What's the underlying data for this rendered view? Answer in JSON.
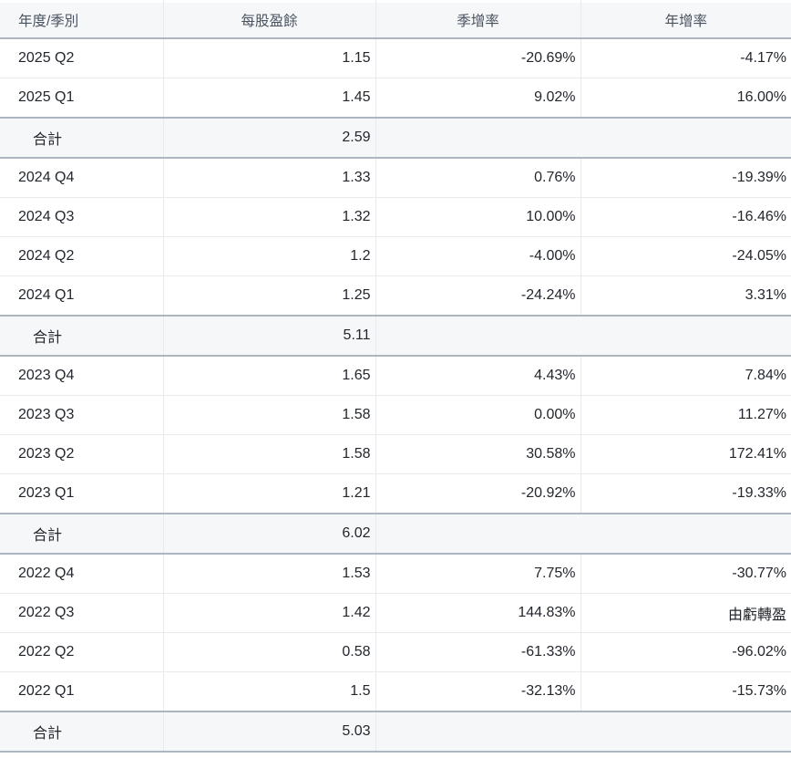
{
  "colors": {
    "header_background": "#f6f7f9",
    "total_row_background": "#f6f7f9",
    "heavy_border": "#adb5c0",
    "light_border": "#e8eaee",
    "header_text": "#49525f",
    "body_text": "#23272d"
  },
  "table": {
    "columns": [
      {
        "label": "年度/季別"
      },
      {
        "label": "每股盈餘"
      },
      {
        "label": "季增率"
      },
      {
        "label": "年增率"
      }
    ],
    "rows": [
      {
        "type": "data",
        "period": "2025 Q2",
        "eps": "1.15",
        "qoq": "-20.69%",
        "yoy": "-4.17%"
      },
      {
        "type": "data",
        "period": "2025 Q1",
        "eps": "1.45",
        "qoq": "9.02%",
        "yoy": "16.00%"
      },
      {
        "type": "total",
        "period": "合計",
        "eps": "2.59",
        "qoq": "",
        "yoy": ""
      },
      {
        "type": "data",
        "period": "2024 Q4",
        "eps": "1.33",
        "qoq": "0.76%",
        "yoy": "-19.39%"
      },
      {
        "type": "data",
        "period": "2024 Q3",
        "eps": "1.32",
        "qoq": "10.00%",
        "yoy": "-16.46%"
      },
      {
        "type": "data",
        "period": "2024 Q2",
        "eps": "1.2",
        "qoq": "-4.00%",
        "yoy": "-24.05%"
      },
      {
        "type": "data",
        "period": "2024 Q1",
        "eps": "1.25",
        "qoq": "-24.24%",
        "yoy": "3.31%"
      },
      {
        "type": "total",
        "period": "合計",
        "eps": "5.11",
        "qoq": "",
        "yoy": ""
      },
      {
        "type": "data",
        "period": "2023 Q4",
        "eps": "1.65",
        "qoq": "4.43%",
        "yoy": "7.84%"
      },
      {
        "type": "data",
        "period": "2023 Q3",
        "eps": "1.58",
        "qoq": "0.00%",
        "yoy": "11.27%"
      },
      {
        "type": "data",
        "period": "2023 Q2",
        "eps": "1.58",
        "qoq": "30.58%",
        "yoy": "172.41%"
      },
      {
        "type": "data",
        "period": "2023 Q1",
        "eps": "1.21",
        "qoq": "-20.92%",
        "yoy": "-19.33%"
      },
      {
        "type": "total",
        "period": "合計",
        "eps": "6.02",
        "qoq": "",
        "yoy": ""
      },
      {
        "type": "data",
        "period": "2022 Q4",
        "eps": "1.53",
        "qoq": "7.75%",
        "yoy": "-30.77%"
      },
      {
        "type": "data",
        "period": "2022 Q3",
        "eps": "1.42",
        "qoq": "144.83%",
        "yoy": "由虧轉盈"
      },
      {
        "type": "data",
        "period": "2022 Q2",
        "eps": "0.58",
        "qoq": "-61.33%",
        "yoy": "-96.02%"
      },
      {
        "type": "data",
        "period": "2022 Q1",
        "eps": "1.5",
        "qoq": "-32.13%",
        "yoy": "-15.73%"
      },
      {
        "type": "total",
        "period": "合計",
        "eps": "5.03",
        "qoq": "",
        "yoy": ""
      }
    ]
  }
}
